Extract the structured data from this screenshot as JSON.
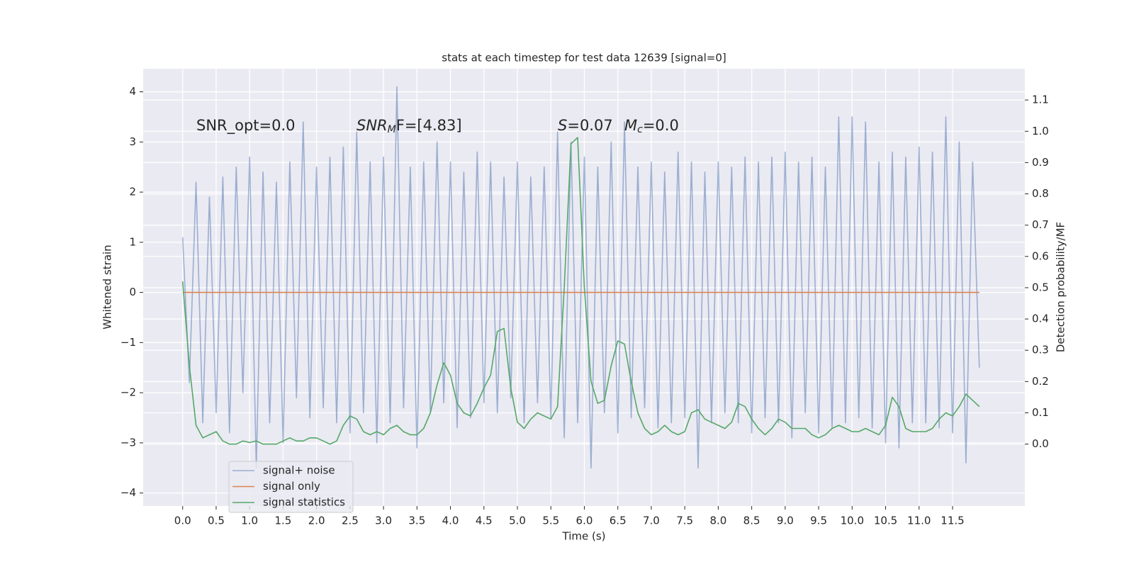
{
  "chart_data": {
    "type": "line",
    "title": "stats at each timestep for test data 12639 [signal=0]",
    "xlabel": "Time (s)",
    "ylabel": "Whitened strain",
    "y2label": "Detection probability/MF",
    "annotations": [
      [
        {
          "text": "SNR_opt=0.0"
        }
      ],
      [
        {
          "text": "SNR",
          "style": "italic"
        },
        {
          "text": "M",
          "style": "sub"
        },
        {
          "text": "F=[4.83]"
        }
      ],
      [
        {
          "text": "S",
          "style": "italic"
        },
        {
          "text": "=0.07"
        }
      ],
      [
        {
          "text": "M",
          "style": "italic"
        },
        {
          "text": "c",
          "style": "sub"
        },
        {
          "text": "=0.0"
        }
      ]
    ],
    "x": [
      0.0,
      0.1,
      0.2,
      0.3,
      0.4,
      0.5,
      0.6,
      0.7,
      0.8,
      0.9,
      1.0,
      1.1,
      1.2,
      1.3,
      1.4,
      1.5,
      1.6,
      1.7,
      1.8,
      1.9,
      2.0,
      2.1,
      2.2,
      2.3,
      2.4,
      2.5,
      2.6,
      2.7,
      2.8,
      2.9,
      3.0,
      3.1,
      3.2,
      3.3,
      3.4,
      3.5,
      3.6,
      3.7,
      3.8,
      3.9,
      4.0,
      4.1,
      4.2,
      4.3,
      4.4,
      4.5,
      4.6,
      4.7,
      4.8,
      4.9,
      5.0,
      5.1,
      5.2,
      5.3,
      5.4,
      5.5,
      5.6,
      5.7,
      5.8,
      5.9,
      6.0,
      6.1,
      6.2,
      6.3,
      6.4,
      6.5,
      6.6,
      6.7,
      6.8,
      6.9,
      7.0,
      7.1,
      7.2,
      7.3,
      7.4,
      7.5,
      7.6,
      7.7,
      7.8,
      7.9,
      8.0,
      8.1,
      8.2,
      8.3,
      8.4,
      8.5,
      8.6,
      8.7,
      8.8,
      8.9,
      9.0,
      9.1,
      9.2,
      9.3,
      9.4,
      9.5,
      9.6,
      9.7,
      9.8,
      9.9,
      10.0,
      10.1,
      10.2,
      10.3,
      10.4,
      10.5,
      10.6,
      10.7,
      10.8,
      10.9,
      11.0,
      11.1,
      11.2,
      11.3,
      11.4,
      11.5,
      11.6,
      11.7,
      11.8,
      11.9
    ],
    "series": [
      {
        "name": "signal+ noise",
        "color": "#4c72b0",
        "opacity": 0.5,
        "values": [
          1.1,
          -1.8,
          2.2,
          -2.6,
          1.9,
          -2.4,
          2.3,
          -2.8,
          2.5,
          -2.0,
          2.7,
          -3.5,
          2.4,
          -2.6,
          2.2,
          -3.0,
          2.6,
          -2.1,
          3.4,
          -2.5,
          2.5,
          -2.3,
          2.7,
          -2.6,
          2.9,
          -2.8,
          3.2,
          -2.4,
          2.6,
          -3.0,
          2.7,
          -2.6,
          4.1,
          -2.3,
          2.5,
          -3.1,
          2.6,
          -2.4,
          3.0,
          -2.2,
          2.6,
          -2.7,
          2.4,
          -2.5,
          2.8,
          -2.2,
          2.6,
          -2.4,
          2.3,
          -2.1,
          2.6,
          -2.6,
          2.3,
          -2.2,
          2.5,
          -2.5,
          3.2,
          -2.9,
          3.0,
          -2.6,
          2.7,
          -3.5,
          2.5,
          -2.4,
          3.0,
          -2.8,
          3.4,
          -2.5,
          2.5,
          -2.3,
          2.6,
          -2.7,
          2.4,
          -2.6,
          2.8,
          -2.5,
          2.6,
          -3.5,
          2.4,
          -2.6,
          2.6,
          -2.4,
          2.5,
          -2.6,
          2.7,
          -2.8,
          2.6,
          -2.5,
          2.7,
          -2.6,
          2.8,
          -2.9,
          2.6,
          -2.4,
          2.7,
          -2.8,
          2.5,
          -2.7,
          3.5,
          -2.6,
          3.5,
          -2.5,
          3.4,
          -2.7,
          2.6,
          -3.0,
          2.8,
          -3.1,
          2.7,
          -2.6,
          2.9,
          -2.6,
          2.8,
          -2.7,
          3.5,
          -2.8,
          3.0,
          -3.4,
          2.6,
          -1.5
        ]
      },
      {
        "name": "signal only",
        "color": "#dd8452",
        "opacity": 1,
        "values": [
          0,
          0,
          0,
          0,
          0,
          0,
          0,
          0,
          0,
          0,
          0,
          0,
          0,
          0,
          0,
          0,
          0,
          0,
          0,
          0,
          0,
          0,
          0,
          0,
          0,
          0,
          0,
          0,
          0,
          0,
          0,
          0,
          0,
          0,
          0,
          0,
          0,
          0,
          0,
          0,
          0,
          0,
          0,
          0,
          0,
          0,
          0,
          0,
          0,
          0,
          0,
          0,
          0,
          0,
          0,
          0,
          0,
          0,
          0,
          0,
          0,
          0,
          0,
          0,
          0,
          0,
          0,
          0,
          0,
          0,
          0,
          0,
          0,
          0,
          0,
          0,
          0,
          0,
          0,
          0,
          0,
          0,
          0,
          0,
          0,
          0,
          0,
          0,
          0,
          0,
          0,
          0,
          0,
          0,
          0,
          0,
          0,
          0,
          0,
          0,
          0,
          0,
          0,
          0,
          0,
          0,
          0,
          0,
          0,
          0,
          0,
          0,
          0,
          0,
          0,
          0,
          0,
          0,
          0,
          0
        ]
      },
      {
        "name": "signal statistics",
        "color": "#55a868",
        "opacity": 1,
        "axis": "y2",
        "values": [
          0.52,
          0.25,
          0.06,
          0.02,
          0.03,
          0.04,
          0.01,
          0.0,
          0.0,
          0.01,
          0.005,
          0.01,
          0.0,
          0.0,
          0.0,
          0.01,
          0.02,
          0.01,
          0.01,
          0.02,
          0.02,
          0.01,
          0.0,
          0.01,
          0.06,
          0.09,
          0.08,
          0.04,
          0.03,
          0.04,
          0.03,
          0.05,
          0.06,
          0.04,
          0.03,
          0.03,
          0.05,
          0.1,
          0.19,
          0.26,
          0.22,
          0.13,
          0.1,
          0.09,
          0.13,
          0.18,
          0.22,
          0.36,
          0.37,
          0.18,
          0.07,
          0.05,
          0.08,
          0.1,
          0.09,
          0.08,
          0.12,
          0.5,
          0.96,
          0.98,
          0.5,
          0.2,
          0.13,
          0.14,
          0.25,
          0.33,
          0.32,
          0.2,
          0.1,
          0.05,
          0.03,
          0.04,
          0.06,
          0.04,
          0.03,
          0.04,
          0.1,
          0.11,
          0.08,
          0.07,
          0.06,
          0.05,
          0.07,
          0.13,
          0.12,
          0.08,
          0.05,
          0.03,
          0.05,
          0.08,
          0.07,
          0.05,
          0.05,
          0.05,
          0.03,
          0.02,
          0.03,
          0.05,
          0.06,
          0.05,
          0.04,
          0.04,
          0.05,
          0.04,
          0.03,
          0.06,
          0.15,
          0.12,
          0.05,
          0.04,
          0.04,
          0.04,
          0.05,
          0.08,
          0.1,
          0.09,
          0.12,
          0.16,
          0.14,
          0.12
        ]
      }
    ],
    "xlim": [
      -0.59,
      12.58
    ],
    "xticks": [
      {
        "value": 0,
        "label": "0.0"
      },
      0.5,
      {
        "value": 1,
        "label": "1.0"
      },
      1.5,
      {
        "value": 2,
        "label": "2.0"
      },
      2.5,
      {
        "value": 3,
        "label": "3.0"
      },
      3.5,
      {
        "value": 4,
        "label": "4.0"
      },
      4.5,
      {
        "value": 5,
        "label": "5.0"
      },
      5.5,
      {
        "value": 6,
        "label": "6.0"
      },
      6.5,
      {
        "value": 7,
        "label": "7.0"
      },
      7.5,
      {
        "value": 8,
        "label": "8.0"
      },
      8.5,
      {
        "value": 9,
        "label": "9.0"
      },
      9.5,
      {
        "value": 10,
        "label": "10.0"
      },
      10.5,
      {
        "value": 11,
        "label": "11.0"
      },
      11.5
    ],
    "ylim": [
      -4.26,
      4.46
    ],
    "yticks": [
      {
        "value": -4,
        "label": "−4"
      },
      {
        "value": -3,
        "label": "−3"
      },
      {
        "value": -2,
        "label": "−2"
      },
      {
        "value": -1,
        "label": "−1"
      },
      0,
      1,
      2,
      3,
      4
    ],
    "y2lim": [
      -0.198,
      1.2
    ],
    "y2ticks": [
      {
        "value": 0,
        "label": "0.0"
      },
      0.1,
      0.2,
      0.3,
      0.4,
      0.5,
      0.6,
      0.7,
      0.8,
      0.9,
      {
        "value": 1,
        "label": "1.0"
      },
      1.1
    ],
    "grid": true,
    "background": "#eaeaf2",
    "legend": "lower left"
  }
}
